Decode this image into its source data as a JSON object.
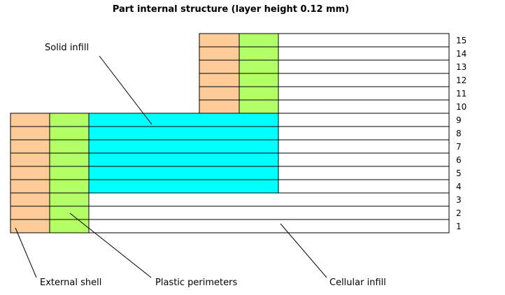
{
  "title": "Part internal structure (layer height 0.12 mm)",
  "layers": [
    "1",
    "2",
    "3",
    "4",
    "5",
    "6",
    "7",
    "8",
    "9",
    "10",
    "11",
    "12",
    "13",
    "14",
    "15"
  ],
  "labels": {
    "solid_infill": "Solid infill",
    "external_shell": "External shell",
    "plastic_perimeters": "Plastic perimeters",
    "cellular_infill": "Cellular infill"
  },
  "colors": {
    "external_shell": "#ffcc99",
    "plastic_perimeters": "#b3ff66",
    "solid_infill": "#00ffff",
    "cellular_infill": "#ffffff",
    "outline": "#000000"
  }
}
